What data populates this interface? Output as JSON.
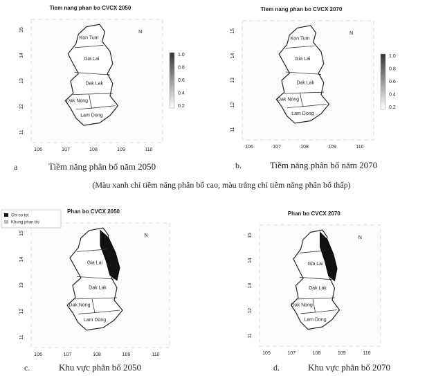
{
  "panels": [
    {
      "title": "Tiem nang phan bo CVCX 2050",
      "yticks": [
        "15",
        "14",
        "13",
        "12",
        "11"
      ],
      "xticks": [
        "106",
        "107",
        "108",
        "109",
        "110"
      ],
      "colorbar": [
        "1.0",
        "0.8",
        "0.6",
        "0.4",
        "0.2"
      ],
      "north": "N",
      "regions": [
        "Kon Tum",
        "Gia Lai",
        "Dak Lak",
        "Dak Nong",
        "Lam Dong"
      ],
      "caption_letter": "a",
      "caption": "Tiềm năng phân bố năm 2050"
    },
    {
      "title": "Tiem nang phan bo CVCX 2070",
      "yticks": [
        "15",
        "14",
        "13",
        "12",
        "11"
      ],
      "xticks": [
        "106",
        "107",
        "108",
        "109",
        "110"
      ],
      "colorbar": [
        "1.0",
        "0.8",
        "0.6",
        "0.4",
        "0.2"
      ],
      "north": "N",
      "regions": [
        "Kon Tum",
        "Gia Lai",
        "Dak Lak",
        "Dak Nong",
        "Lam Dong"
      ],
      "caption_letter": "b.",
      "caption": "Tiềm năng phân bố năm 2070"
    },
    {
      "title": "Phan bo CVCX 2050",
      "yticks": [
        "15",
        "14",
        "13",
        "12",
        "11"
      ],
      "xticks": [
        "106",
        "107",
        "108",
        "109",
        "110"
      ],
      "legend": [
        "Chi so tot",
        "Khung phan bo"
      ],
      "north": "N",
      "regions": [
        "Gia Lai",
        "Dak Lak",
        "Dak Nong",
        "Lam Dong"
      ],
      "caption_letter": "c.",
      "caption": "Khu vực phân bố 2050"
    },
    {
      "title": "Phan bo CVCX 2070",
      "yticks": [
        "15",
        "14",
        "13",
        "12",
        "11"
      ],
      "xticks": [
        "105",
        "107",
        "108",
        "109",
        "110"
      ],
      "north": "N",
      "regions": [
        "Gia Lai",
        "Dak Lak",
        "Dak Nong",
        "Lam Dong"
      ],
      "caption_letter": "d.",
      "caption": "Khu vực phân bố 2070"
    }
  ],
  "note": "(Màu xanh chỉ tiềm năng phân bố cao, màu trắng chỉ tiềm năng phân bố thấp)"
}
